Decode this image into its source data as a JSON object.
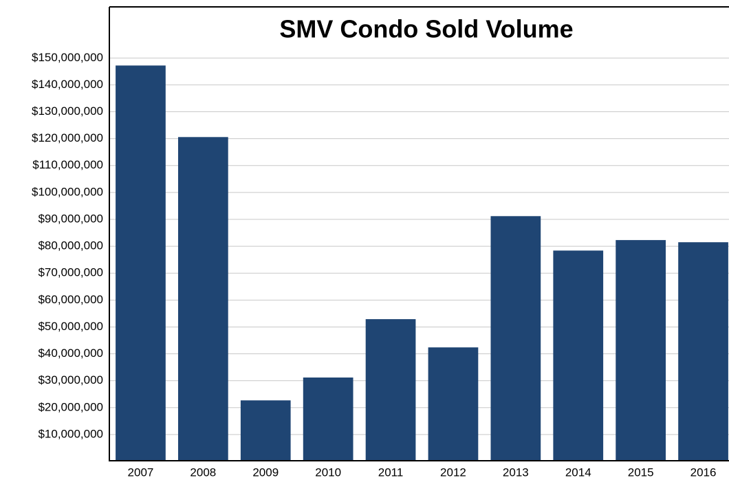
{
  "chart_data": {
    "type": "bar",
    "title": "SMV Condo Sold Volume",
    "categories": [
      "2007",
      "2008",
      "2009",
      "2010",
      "2011",
      "2012",
      "2013",
      "2014",
      "2015",
      "2016"
    ],
    "values": [
      147200000,
      120600000,
      22700000,
      31200000,
      52900000,
      42400000,
      91200000,
      78400000,
      82300000,
      81500000
    ],
    "color": "#1f4573",
    "ylim": [
      0,
      169000000
    ],
    "yticks": [
      {
        "value": 10000000,
        "label": "$10,000,000"
      },
      {
        "value": 20000000,
        "label": "$20,000,000"
      },
      {
        "value": 30000000,
        "label": "$30,000,000"
      },
      {
        "value": 40000000,
        "label": "$40,000,000"
      },
      {
        "value": 50000000,
        "label": "$50,000,000"
      },
      {
        "value": 60000000,
        "label": "$60,000,000"
      },
      {
        "value": 70000000,
        "label": "$70,000,000"
      },
      {
        "value": 80000000,
        "label": "$80,000,000"
      },
      {
        "value": 90000000,
        "label": "$90,000,000"
      },
      {
        "value": 100000000,
        "label": "$100,000,000"
      },
      {
        "value": 110000000,
        "label": "$110,000,000"
      },
      {
        "value": 120000000,
        "label": "$120,000,000"
      },
      {
        "value": 130000000,
        "label": "$130,000,000"
      },
      {
        "value": 140000000,
        "label": "$140,000,000"
      },
      {
        "value": 150000000,
        "label": "$150,000,000"
      }
    ],
    "grid": true
  }
}
